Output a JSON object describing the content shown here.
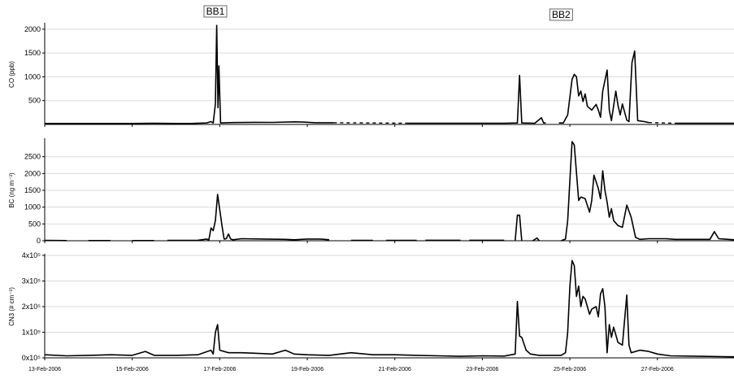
{
  "chart_data": {
    "type": "line",
    "shared_x_ticks": [
      "13-Feb-2006",
      "15-Feb-2006",
      "17-Feb-2006",
      "19-Feb-2006",
      "21-Feb-2006",
      "23-Feb-2006",
      "25-Feb-2006",
      "27-Feb-2006"
    ],
    "xlim": [
      0,
      15.75
    ],
    "annotations": [
      {
        "text": "BB1",
        "x": 3.9
      },
      {
        "text": "BB2",
        "x": 11.8
      }
    ],
    "panels": [
      {
        "ylabel": "CO (ppb)",
        "ylim": [
          0,
          2100
        ],
        "yticks": [
          500,
          1000,
          1500,
          2000
        ],
        "ytick_labels": [
          "500",
          "1000",
          "1500",
          "2000"
        ],
        "grid": true,
        "segments": [
          [
            [
              0,
              20
            ],
            [
              1,
              20
            ],
            [
              2,
              20
            ],
            [
              2.5,
              25
            ],
            [
              3,
              20
            ],
            [
              3.4,
              22
            ],
            [
              3.7,
              30
            ],
            [
              3.8,
              60
            ],
            [
              3.85,
              30
            ],
            [
              3.9,
              430
            ],
            [
              3.93,
              2080
            ],
            [
              3.96,
              350
            ],
            [
              3.98,
              1230
            ],
            [
              4.02,
              30
            ],
            [
              4.3,
              40
            ],
            [
              4.8,
              45
            ],
            [
              5.2,
              42
            ],
            [
              5.7,
              55
            ],
            [
              5.9,
              50
            ],
            [
              6.2,
              35
            ],
            [
              6.6,
              35
            ]
          ],
          [
            [
              8.3,
              25
            ],
            [
              9,
              25
            ],
            [
              10,
              25
            ],
            [
              10.5,
              25
            ],
            [
              10.8,
              30
            ],
            [
              10.85,
              1030
            ],
            [
              10.9,
              30
            ],
            [
              11.2,
              25
            ],
            [
              11.35,
              140
            ],
            [
              11.4,
              30
            ],
            [
              11.45,
              30
            ]
          ],
          [
            [
              11.75,
              30
            ],
            [
              11.85,
              30
            ],
            [
              11.95,
              200
            ],
            [
              12.05,
              950
            ],
            [
              12.1,
              1050
            ],
            [
              12.15,
              1000
            ],
            [
              12.2,
              600
            ],
            [
              12.25,
              700
            ],
            [
              12.3,
              480
            ],
            [
              12.35,
              640
            ],
            [
              12.4,
              380
            ],
            [
              12.5,
              300
            ],
            [
              12.6,
              420
            ],
            [
              12.65,
              300
            ],
            [
              12.7,
              150
            ],
            [
              12.75,
              700
            ],
            [
              12.85,
              1140
            ],
            [
              12.9,
              300
            ],
            [
              12.95,
              80
            ],
            [
              13.05,
              700
            ],
            [
              13.1,
              400
            ],
            [
              13.15,
              200
            ],
            [
              13.2,
              430
            ],
            [
              13.3,
              90
            ],
            [
              13.35,
              60
            ],
            [
              13.42,
              1300
            ],
            [
              13.48,
              1540
            ],
            [
              13.55,
              80
            ],
            [
              13.7,
              60
            ],
            [
              13.8,
              40
            ]
          ],
          [
            [
              14.4,
              25
            ],
            [
              15,
              25
            ],
            [
              15.75,
              25
            ]
          ]
        ],
        "dashed_segments": [
          [
            [
              6.6,
              35
            ],
            [
              8.3,
              25
            ]
          ],
          [
            [
              13.8,
              40
            ],
            [
              14.4,
              25
            ]
          ]
        ]
      },
      {
        "ylabel": "BC (ng m⁻³)",
        "ylim": [
          0,
          3000
        ],
        "yticks": [
          0,
          500,
          1000,
          1500,
          2000,
          2500
        ],
        "ytick_labels": [
          "0",
          "500",
          "1000",
          "1500",
          "2000",
          "2500"
        ],
        "grid": true,
        "segments": [
          [
            [
              0,
              10
            ],
            [
              0.5,
              5
            ]
          ],
          [
            [
              1,
              5
            ],
            [
              1.5,
              5
            ]
          ],
          [
            [
              2,
              5
            ],
            [
              2.5,
              5
            ]
          ],
          [
            [
              2.8,
              10
            ],
            [
              3.5,
              15
            ],
            [
              3.7,
              50
            ],
            [
              3.75,
              20
            ],
            [
              3.8,
              380
            ],
            [
              3.85,
              300
            ],
            [
              3.9,
              600
            ],
            [
              3.95,
              1380
            ],
            [
              4.05,
              450
            ],
            [
              4.1,
              50
            ],
            [
              4.15,
              60
            ],
            [
              4.2,
              200
            ],
            [
              4.25,
              50
            ],
            [
              4.3,
              30
            ],
            [
              4.5,
              60
            ],
            [
              5,
              50
            ],
            [
              5.5,
              40
            ],
            [
              5.7,
              30
            ],
            [
              6,
              50
            ],
            [
              6.3,
              50
            ],
            [
              6.5,
              30
            ]
          ],
          [
            [
              7,
              10
            ],
            [
              7.5,
              10
            ]
          ],
          [
            [
              7.8,
              10
            ],
            [
              8.5,
              10
            ]
          ],
          [
            [
              8.7,
              15
            ],
            [
              9.5,
              15
            ]
          ],
          [
            [
              9.7,
              15
            ],
            [
              10.5,
              15
            ]
          ],
          [
            [
              10.75,
              0
            ],
            [
              10.8,
              760
            ],
            [
              10.85,
              760
            ],
            [
              10.9,
              0
            ]
          ],
          [
            [
              11.15,
              0
            ],
            [
              11.25,
              80
            ],
            [
              11.3,
              0
            ]
          ],
          [
            [
              11.8,
              0
            ],
            [
              11.9,
              50
            ],
            [
              11.95,
              600
            ],
            [
              12,
              1800
            ],
            [
              12.05,
              2950
            ],
            [
              12.1,
              2850
            ],
            [
              12.2,
              1200
            ],
            [
              12.25,
              1300
            ],
            [
              12.35,
              1250
            ],
            [
              12.45,
              850
            ],
            [
              12.5,
              1200
            ],
            [
              12.55,
              1950
            ],
            [
              12.65,
              1550
            ],
            [
              12.7,
              1250
            ],
            [
              12.75,
              2080
            ],
            [
              12.8,
              1500
            ],
            [
              12.85,
              1150
            ],
            [
              12.9,
              700
            ],
            [
              12.95,
              950
            ],
            [
              13,
              600
            ],
            [
              13.1,
              450
            ],
            [
              13.2,
              400
            ],
            [
              13.3,
              1060
            ],
            [
              13.4,
              700
            ],
            [
              13.5,
              100
            ],
            [
              13.6,
              40
            ],
            [
              13.8,
              60
            ],
            [
              14.2,
              60
            ],
            [
              14.4,
              40
            ],
            [
              15,
              40
            ],
            [
              15.2,
              40
            ],
            [
              15.3,
              270
            ],
            [
              15.4,
              60
            ],
            [
              15.75,
              30
            ]
          ]
        ],
        "dashed_segments": []
      },
      {
        "ylabel": "CN3 (# cm⁻³)",
        "ylim": [
          0,
          400000
        ],
        "yticks": [
          0,
          100000,
          200000,
          300000,
          400000
        ],
        "ytick_labels": [
          "0x10⁵",
          "1x10⁵",
          "2x10⁵",
          "3x10⁵",
          "4x10⁵"
        ],
        "grid": true,
        "segments": [
          [
            [
              0,
              12000
            ],
            [
              0.5,
              8000
            ],
            [
              1,
              10000
            ],
            [
              1.5,
              12000
            ],
            [
              2,
              10000
            ],
            [
              2.3,
              25000
            ],
            [
              2.5,
              10000
            ],
            [
              3,
              10000
            ],
            [
              3.5,
              12000
            ],
            [
              3.8,
              30000
            ],
            [
              3.85,
              15000
            ],
            [
              3.9,
              100000
            ],
            [
              3.95,
              130000
            ],
            [
              4,
              30000
            ],
            [
              4.2,
              20000
            ],
            [
              4.5,
              20000
            ],
            [
              4.8,
              18000
            ],
            [
              5.2,
              15000
            ],
            [
              5.5,
              30000
            ],
            [
              5.7,
              15000
            ],
            [
              6,
              12000
            ],
            [
              6.5,
              10000
            ],
            [
              7,
              20000
            ],
            [
              7.5,
              12000
            ],
            [
              8,
              12000
            ],
            [
              8.5,
              10000
            ],
            [
              9,
              8000
            ],
            [
              9.5,
              6000
            ],
            [
              10,
              8000
            ],
            [
              10.5,
              7000
            ],
            [
              10.75,
              15000
            ],
            [
              10.8,
              220000
            ],
            [
              10.85,
              85000
            ],
            [
              10.9,
              80000
            ],
            [
              11,
              30000
            ],
            [
              11.1,
              15000
            ],
            [
              11.3,
              10000
            ],
            [
              11.5,
              10000
            ],
            [
              11.8,
              10000
            ],
            [
              11.9,
              20000
            ],
            [
              11.95,
              100000
            ],
            [
              12,
              280000
            ],
            [
              12.05,
              380000
            ],
            [
              12.1,
              360000
            ],
            [
              12.15,
              240000
            ],
            [
              12.2,
              280000
            ],
            [
              12.25,
              200000
            ],
            [
              12.3,
              240000
            ],
            [
              12.35,
              230000
            ],
            [
              12.45,
              170000
            ],
            [
              12.5,
              190000
            ],
            [
              12.6,
              200000
            ],
            [
              12.65,
              160000
            ],
            [
              12.7,
              250000
            ],
            [
              12.75,
              270000
            ],
            [
              12.8,
              200000
            ],
            [
              12.85,
              20000
            ],
            [
              12.9,
              130000
            ],
            [
              12.95,
              80000
            ],
            [
              13,
              120000
            ],
            [
              13.1,
              60000
            ],
            [
              13.2,
              50000
            ],
            [
              13.3,
              245000
            ],
            [
              13.35,
              50000
            ],
            [
              13.4,
              20000
            ],
            [
              13.6,
              30000
            ],
            [
              13.8,
              25000
            ],
            [
              14,
              15000
            ],
            [
              14.3,
              8000
            ],
            [
              15,
              6000
            ],
            [
              15.75,
              4000
            ]
          ]
        ],
        "dashed_segments": []
      }
    ]
  }
}
